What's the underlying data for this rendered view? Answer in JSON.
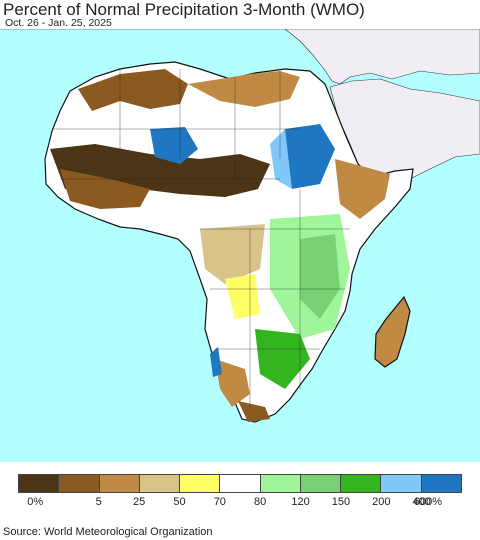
{
  "header": {
    "title": "Percent of Normal Precipitation 3-Month (WMO)",
    "date_range": "Oct. 26 - Jan. 25, 2025"
  },
  "map": {
    "region": "Africa",
    "ocean_color": "#b3ffff",
    "outside_land_color": "#f0eef4"
  },
  "legend": {
    "colors": [
      "#4b3516",
      "#8a5a20",
      "#c08a45",
      "#d8c388",
      "#fefe66",
      "#ffffff",
      "#a0f59a",
      "#78d173",
      "#34b41f",
      "#80c8fa",
      "#1e77c0"
    ],
    "labels": [
      "0%",
      "5",
      "25",
      "50",
      "70",
      "80",
      "120",
      "150",
      "200",
      "400",
      "600%"
    ]
  },
  "footer": {
    "source": "Source: World Meteorological Organization"
  }
}
